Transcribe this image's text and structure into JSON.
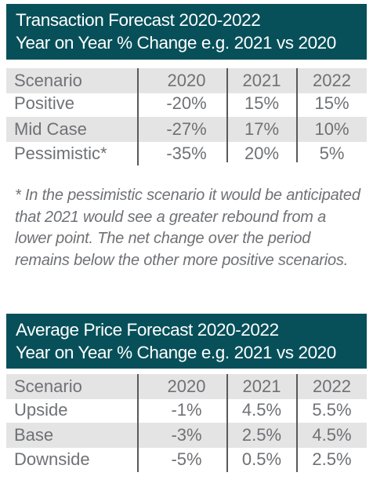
{
  "table1": {
    "title_line1": "Transaction Forecast 2020-2022",
    "title_line2": "Year on Year % Change e.g. 2021 vs 2020",
    "headers": [
      "Scenario",
      "2020",
      "2021",
      "2022"
    ],
    "rows": [
      [
        "Positive",
        "-20%",
        "15%",
        "15%"
      ],
      [
        "Mid Case",
        "-27%",
        "17%",
        "10%"
      ],
      [
        "Pessimistic*",
        "-35%",
        "20%",
        "5%"
      ]
    ]
  },
  "footnote": "* In the pessimistic scenario it would be anticipated that 2021 would see a greater rebound from a lower point. The net change over the period remains below the other more positive scenarios.",
  "table2": {
    "title_line1": "Average Price Forecast 2020-2022",
    "title_line2": "Year on Year % Change e.g. 2021 vs 2020",
    "headers": [
      "Scenario",
      "2020",
      "2021",
      "2022"
    ],
    "rows": [
      [
        "Upside",
        "-1%",
        "4.5%",
        "5.5%"
      ],
      [
        "Base",
        "-3%",
        "2.5%",
        "4.5%"
      ],
      [
        "Downside",
        "-5%",
        "0.5%",
        "2.5%"
      ]
    ]
  },
  "colors": {
    "banner": "#07505a",
    "row_shade": "#e4e4e4",
    "text": "#6f7175"
  }
}
